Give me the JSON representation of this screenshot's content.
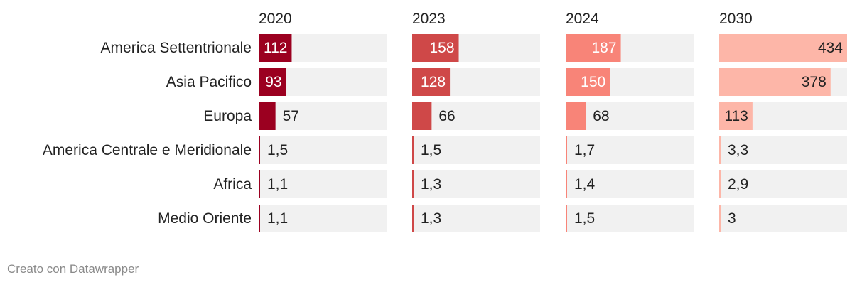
{
  "chart_data": {
    "type": "bar",
    "layout": "small-multiples-horizontal",
    "categories": [
      "America Settentrionale",
      "Asia Pacifico",
      "Europa",
      "America Centrale e Meridionale",
      "Africa",
      "Medio Oriente"
    ],
    "series": [
      {
        "name": "2020",
        "values": [
          112,
          93,
          57,
          1.5,
          1.1,
          1.1
        ],
        "labels": [
          "112",
          "93",
          "57",
          "1,5",
          "1,1",
          "1,1"
        ],
        "color": "#9b0020"
      },
      {
        "name": "2023",
        "values": [
          158,
          128,
          66,
          1.5,
          1.3,
          1.3
        ],
        "labels": [
          "158",
          "128",
          "66",
          "1,5",
          "1,3",
          "1,3"
        ],
        "color": "#cf4848"
      },
      {
        "name": "2024",
        "values": [
          187,
          150,
          68,
          1.7,
          1.4,
          1.5
        ],
        "labels": [
          "187",
          "150",
          "68",
          "1,7",
          "1,4",
          "1,5"
        ],
        "color": "#f88478"
      },
      {
        "name": "2030",
        "values": [
          434,
          378,
          113,
          3.3,
          2.9,
          3
        ],
        "labels": [
          "434",
          "378",
          "113",
          "3,3",
          "2,9",
          "3"
        ],
        "color": "#fdb6a8"
      }
    ],
    "xlim": [
      0,
      434
    ],
    "background_bar_color": "#f1f1f1",
    "grid": false,
    "legend": "none"
  },
  "footer": {
    "credit": "Creato con Datawrapper"
  }
}
